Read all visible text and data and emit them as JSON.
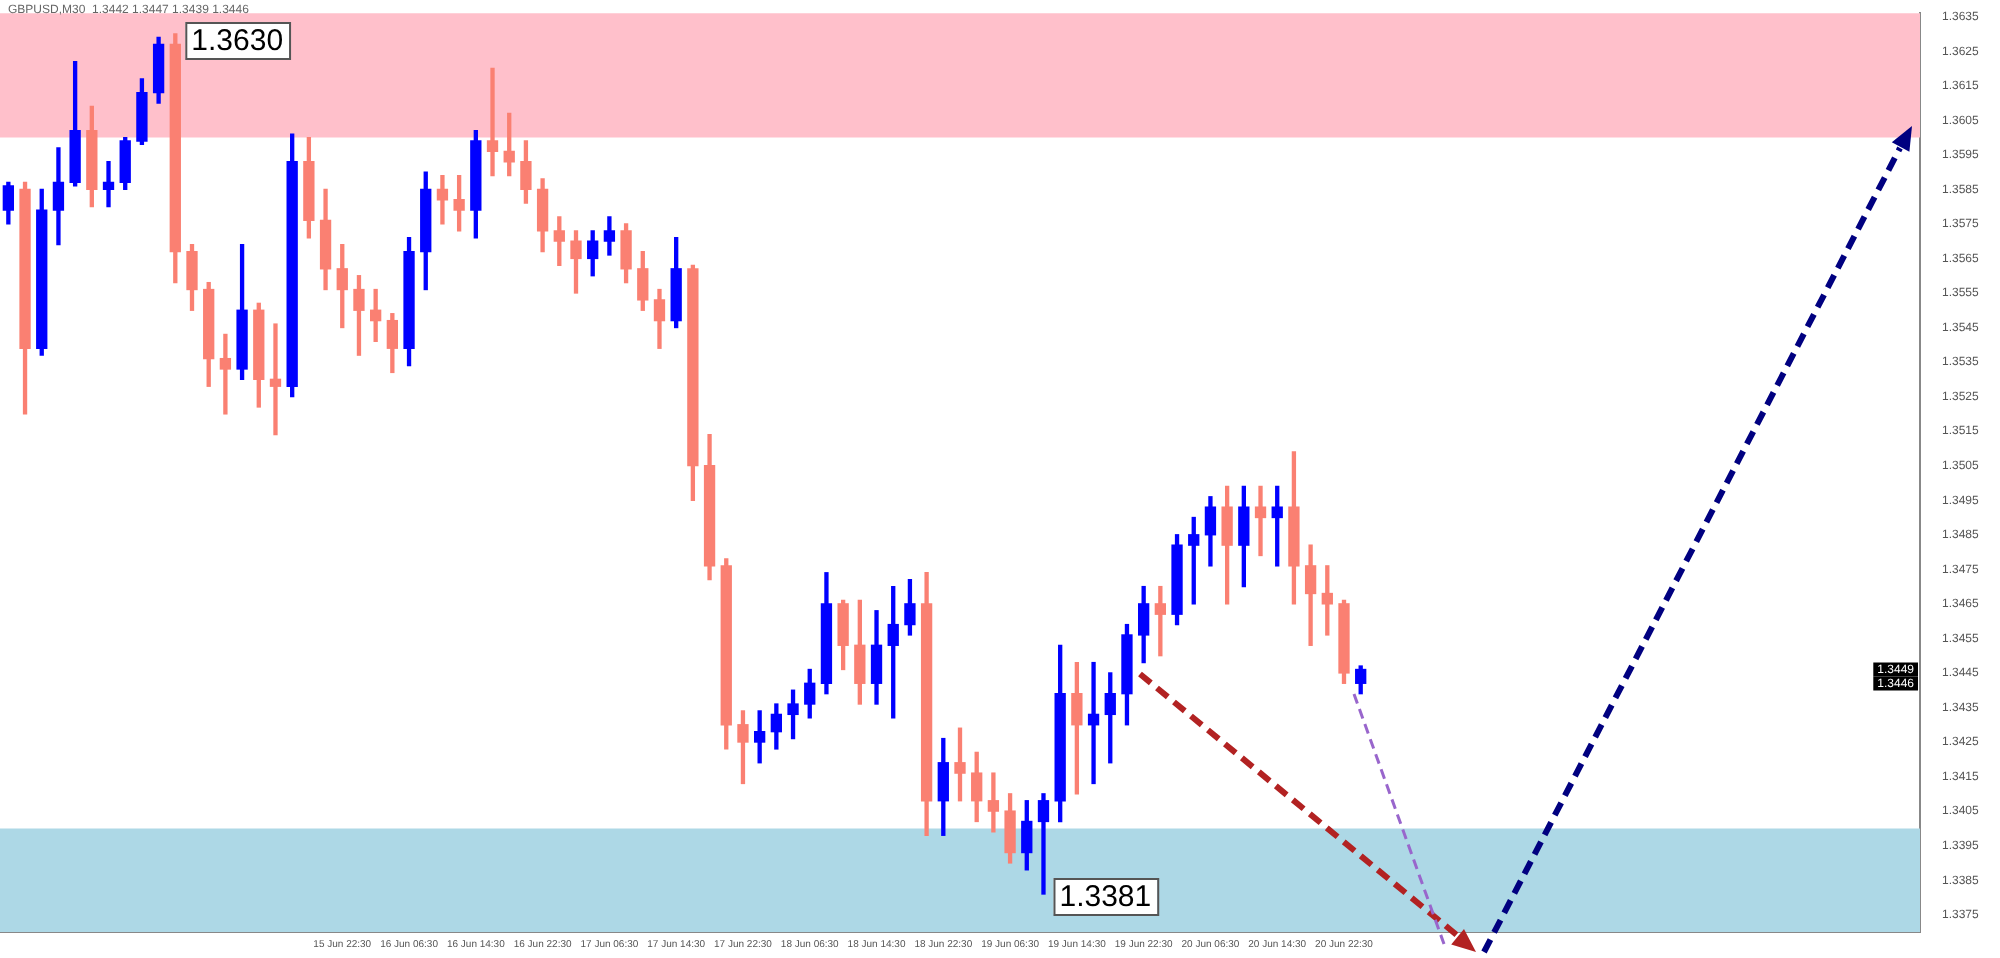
{
  "chart_data": {
    "type": "candlestick",
    "title": "GBPUSD,M30  1.3442 1.3447 1.3439 1.3446",
    "categories": [
      null,
      null,
      null,
      null,
      null,
      null,
      null,
      null,
      null,
      null,
      null,
      null,
      null,
      null,
      null,
      null,
      null,
      null,
      null,
      null,
      "15 Jun 22:30",
      null,
      null,
      null,
      "16 Jun 06:30",
      null,
      null,
      null,
      "16 Jun 14:30",
      null,
      null,
      null,
      "16 Jun 22:30",
      null,
      null,
      null,
      "17 Jun 06:30",
      null,
      null,
      null,
      "17 Jun 14:30",
      null,
      null,
      null,
      "17 Jun 22:30",
      null,
      null,
      null,
      "18 Jun 06:30",
      null,
      null,
      null,
      "18 Jun 14:30",
      null,
      null,
      null,
      "18 Jun 22:30",
      null,
      null,
      null,
      "19 Jun 06:30",
      null,
      null,
      null,
      "19 Jun 14:30",
      null,
      null,
      null,
      "19 Jun 22:30",
      null,
      null,
      null,
      "20 Jun 06:30",
      null,
      null,
      null,
      "20 Jun 14:30",
      null,
      null,
      null,
      "20 Jun 22:30",
      null,
      null,
      null,
      null,
      null,
      null,
      null,
      null,
      null,
      null,
      null,
      null,
      null,
      null,
      null,
      null,
      null,
      null,
      null,
      null,
      null,
      null,
      null,
      null,
      null,
      null,
      null,
      null,
      null,
      null,
      null,
      null,
      null,
      null
    ],
    "ohlc": [
      [
        1.3579,
        1.3587,
        1.3575,
        1.3586
      ],
      [
        1.3585,
        1.3587,
        1.352,
        1.3539
      ],
      [
        1.3539,
        1.3585,
        1.3537,
        1.3579
      ],
      [
        1.3579,
        1.3597,
        1.3569,
        1.3587
      ],
      [
        1.3587,
        1.3622,
        1.3586,
        1.3602
      ],
      [
        1.3602,
        1.3609,
        1.358,
        1.3585
      ],
      [
        1.3585,
        1.3593,
        1.358,
        1.3587
      ],
      [
        1.3587,
        1.36,
        1.3585,
        1.3599
      ],
      [
        1.3599,
        1.3617,
        1.3598,
        1.3613
      ],
      [
        1.3613,
        1.3629,
        1.361,
        1.3627
      ],
      [
        1.3627,
        1.363,
        1.3558,
        1.3567
      ],
      [
        1.3567,
        1.3569,
        1.355,
        1.3556
      ],
      [
        1.3556,
        1.3558,
        1.3528,
        1.3536
      ],
      [
        1.3536,
        1.3543,
        1.352,
        1.3533
      ],
      [
        1.3533,
        1.3569,
        1.353,
        1.355
      ],
      [
        1.355,
        1.3552,
        1.3522,
        1.353
      ],
      [
        1.353,
        1.3546,
        1.3514,
        1.3528
      ],
      [
        1.3528,
        1.3601,
        1.3525,
        1.3593
      ],
      [
        1.3593,
        1.36,
        1.3571,
        1.3576
      ],
      [
        1.3576,
        1.3585,
        1.3556,
        1.3562
      ],
      [
        1.3562,
        1.3569,
        1.3545,
        1.3556
      ],
      [
        1.3556,
        1.356,
        1.3537,
        1.355
      ],
      [
        1.355,
        1.3556,
        1.3541,
        1.3547
      ],
      [
        1.3547,
        1.3549,
        1.3532,
        1.3539
      ],
      [
        1.3539,
        1.3571,
        1.3534,
        1.3567
      ],
      [
        1.3567,
        1.359,
        1.3556,
        1.3585
      ],
      [
        1.3585,
        1.3589,
        1.3575,
        1.3582
      ],
      [
        1.3582,
        1.3589,
        1.3573,
        1.3579
      ],
      [
        1.3579,
        1.3602,
        1.3571,
        1.3599
      ],
      [
        1.3599,
        1.362,
        1.3589,
        1.3596
      ],
      [
        1.3596,
        1.3607,
        1.3589,
        1.3593
      ],
      [
        1.3593,
        1.3599,
        1.3581,
        1.3585
      ],
      [
        1.3585,
        1.3588,
        1.3567,
        1.3573
      ],
      [
        1.3573,
        1.3577,
        1.3563,
        1.357
      ],
      [
        1.357,
        1.3573,
        1.3555,
        1.3565
      ],
      [
        1.3565,
        1.3573,
        1.356,
        1.357
      ],
      [
        1.357,
        1.3577,
        1.3566,
        1.3573
      ],
      [
        1.3573,
        1.3575,
        1.3558,
        1.3562
      ],
      [
        1.3562,
        1.3567,
        1.355,
        1.3553
      ],
      [
        1.3553,
        1.3556,
        1.3539,
        1.3547
      ],
      [
        1.3547,
        1.3571,
        1.3545,
        1.3562
      ],
      [
        1.3562,
        1.3563,
        1.3495,
        1.3505
      ],
      [
        1.3505,
        1.3514,
        1.3472,
        1.3476
      ],
      [
        1.3476,
        1.3478,
        1.3423,
        1.343
      ],
      [
        1.343,
        1.3434,
        1.3413,
        1.3425
      ],
      [
        1.3425,
        1.3434,
        1.3419,
        1.3428
      ],
      [
        1.3428,
        1.3436,
        1.3423,
        1.3433
      ],
      [
        1.3433,
        1.344,
        1.3426,
        1.3436
      ],
      [
        1.3436,
        1.3446,
        1.3432,
        1.3442
      ],
      [
        1.3442,
        1.3474,
        1.3439,
        1.3465
      ],
      [
        1.3465,
        1.3466,
        1.3446,
        1.3453
      ],
      [
        1.3453,
        1.3466,
        1.3436,
        1.3442
      ],
      [
        1.3442,
        1.3463,
        1.3436,
        1.3453
      ],
      [
        1.3453,
        1.347,
        1.3432,
        1.3459
      ],
      [
        1.3459,
        1.3472,
        1.3456,
        1.3465
      ],
      [
        1.3465,
        1.3474,
        1.3398,
        1.3408
      ],
      [
        1.3408,
        1.3426,
        1.3398,
        1.3419
      ],
      [
        1.3419,
        1.3429,
        1.3408,
        1.3416
      ],
      [
        1.3416,
        1.3422,
        1.3402,
        1.3408
      ],
      [
        1.3408,
        1.3416,
        1.3399,
        1.3405
      ],
      [
        1.3405,
        1.341,
        1.339,
        1.3393
      ],
      [
        1.3393,
        1.3408,
        1.3388,
        1.3402
      ],
      [
        1.3402,
        1.341,
        1.3381,
        1.3408
      ],
      [
        1.3408,
        1.3453,
        1.3402,
        1.3439
      ],
      [
        1.3439,
        1.3448,
        1.341,
        1.343
      ],
      [
        1.343,
        1.3448,
        1.3413,
        1.3433
      ],
      [
        1.3433,
        1.3445,
        1.3419,
        1.3439
      ],
      [
        1.3439,
        1.3459,
        1.343,
        1.3456
      ],
      [
        1.3456,
        1.347,
        1.3448,
        1.3465
      ],
      [
        1.3465,
        1.347,
        1.345,
        1.3462
      ],
      [
        1.3462,
        1.3485,
        1.3459,
        1.3482
      ],
      [
        1.3482,
        1.349,
        1.3465,
        1.3485
      ],
      [
        1.3485,
        1.3496,
        1.3476,
        1.3493
      ],
      [
        1.3493,
        1.3499,
        1.3465,
        1.3482
      ],
      [
        1.3482,
        1.3499,
        1.347,
        1.3493
      ],
      [
        1.3493,
        1.3499,
        1.3479,
        1.349
      ],
      [
        1.349,
        1.3499,
        1.3476,
        1.3493
      ],
      [
        1.3493,
        1.3509,
        1.3465,
        1.3476
      ],
      [
        1.3476,
        1.3482,
        1.3453,
        1.3468
      ],
      [
        1.3468,
        1.3476,
        1.3456,
        1.3465
      ],
      [
        1.3465,
        1.3466,
        1.3442,
        1.3445
      ],
      [
        1.3442,
        1.3447,
        1.3439,
        1.3446
      ],
      null,
      null,
      null,
      null,
      null,
      null,
      null,
      null,
      null,
      null,
      null,
      null,
      null,
      null,
      null,
      null,
      null,
      null,
      null,
      null,
      null,
      null,
      null,
      null,
      null,
      null,
      null,
      null,
      null,
      null,
      null,
      null,
      null
    ],
    "colors": [
      "#0000ff",
      "#fa8072",
      "#0000ff",
      "#0000ff",
      "#0000ff",
      "#fa8072",
      "#0000ff",
      "#0000ff",
      "#0000ff",
      "#0000ff",
      "#fa8072",
      "#fa8072",
      "#fa8072",
      "#fa8072",
      "#0000ff",
      "#fa8072",
      "#fa8072",
      "#0000ff",
      "#fa8072",
      "#fa8072",
      "#fa8072",
      "#fa8072",
      "#fa8072",
      "#fa8072",
      "#0000ff",
      "#0000ff",
      "#fa8072",
      "#fa8072",
      "#0000ff",
      "#fa8072",
      "#fa8072",
      "#fa8072",
      "#fa8072",
      "#fa8072",
      "#fa8072",
      "#0000ff",
      "#0000ff",
      "#fa8072",
      "#fa8072",
      "#fa8072",
      "#0000ff",
      "#fa8072",
      "#fa8072",
      "#fa8072",
      "#fa8072",
      "#0000ff",
      "#0000ff",
      "#0000ff",
      "#0000ff",
      "#0000ff",
      "#fa8072",
      "#fa8072",
      "#0000ff",
      "#0000ff",
      "#0000ff",
      "#fa8072",
      "#0000ff",
      "#fa8072",
      "#fa8072",
      "#fa8072",
      "#fa8072",
      "#0000ff",
      "#0000ff",
      "#0000ff",
      "#fa8072",
      "#0000ff",
      "#0000ff",
      "#0000ff",
      "#0000ff",
      "#fa8072",
      "#0000ff",
      "#0000ff",
      "#0000ff",
      "#fa8072",
      "#0000ff",
      "#fa8072",
      "#0000ff",
      "#fa8072",
      "#fa8072",
      "#fa8072",
      "#fa8072",
      "#0000ff",
      null,
      null,
      null,
      null,
      null,
      null,
      null,
      null,
      null,
      null,
      null,
      null,
      null,
      null,
      null,
      null,
      null,
      null,
      null,
      null,
      null,
      null,
      null,
      null,
      null,
      null,
      null,
      null,
      null,
      null,
      null,
      null,
      null
    ],
    "ylim": [
      1.337,
      1.3636
    ],
    "yticks": [
      1.3375,
      1.3385,
      1.3395,
      1.3405,
      1.3415,
      1.3425,
      1.3435,
      1.3445,
      1.3455,
      1.3465,
      1.3475,
      1.3485,
      1.3495,
      1.3505,
      1.3515,
      1.3525,
      1.3535,
      1.3545,
      1.3555,
      1.3565,
      1.3575,
      1.3585,
      1.3595,
      1.3605,
      1.3615,
      1.3625,
      1.3635
    ],
    "bands": [
      {
        "axis": "y",
        "from": 1.36,
        "to": 1.3636,
        "color": "#ffc0cb"
      },
      {
        "axis": "y",
        "from": 1.337,
        "to": 1.34,
        "color": "#add8e6"
      }
    ],
    "annotations": [
      "1.3630",
      "1.3381",
      "1.3449",
      "1.3446"
    ],
    "grid": false,
    "legend": false
  }
}
